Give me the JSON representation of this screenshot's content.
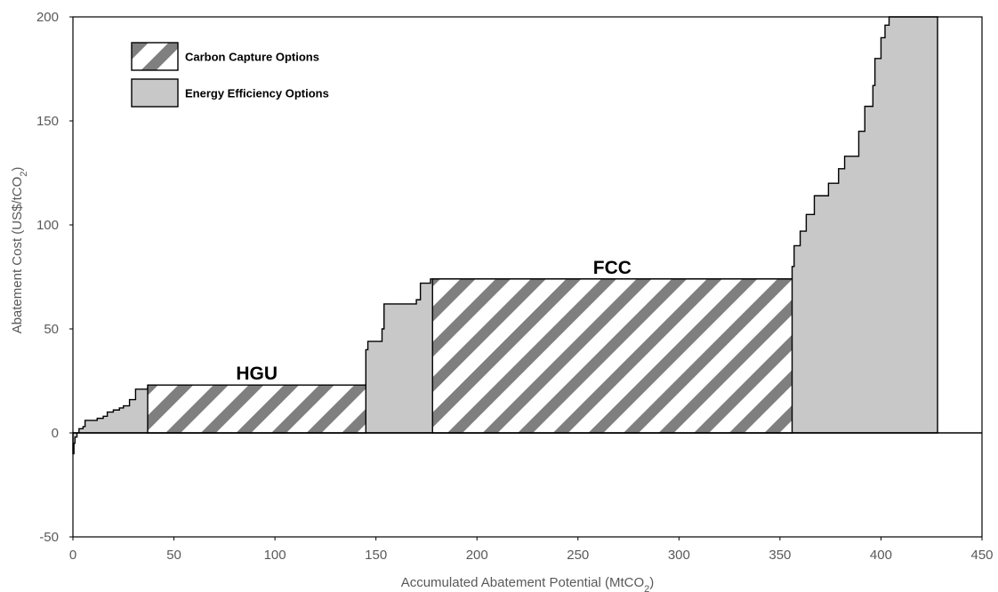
{
  "chart_data": {
    "type": "area",
    "xlabel": "Accumulated Abatement Potential (MtCO2)",
    "ylabel": "Abatement Cost (US$/tCO2)",
    "xlim": [
      0,
      450
    ],
    "ylim": [
      -50,
      200
    ],
    "xticks": [
      "0",
      "50",
      "100",
      "150",
      "200",
      "250",
      "300",
      "350",
      "400",
      "450"
    ],
    "yticks": [
      "-50",
      "0",
      "50",
      "100",
      "150",
      "200"
    ],
    "grid": false,
    "legend_position": "top-left",
    "legend": [
      {
        "label": "Carbon Capture Options",
        "pattern": "hatched"
      },
      {
        "label": "Energy Efficiency Options",
        "pattern": "solid"
      }
    ],
    "colors": {
      "energy_fill": "#c8c8c8",
      "hatch": "#7f7f7f",
      "outline": "#000000",
      "axis_text": "#595959"
    },
    "series": [
      {
        "name": "Energy Efficiency Options",
        "pattern": "solid",
        "steps": [
          [
            0,
            -10
          ],
          [
            0.5,
            -5
          ],
          [
            1,
            -2
          ],
          [
            2,
            0
          ],
          [
            3,
            2
          ],
          [
            5,
            3
          ],
          [
            6,
            6
          ],
          [
            12,
            7
          ],
          [
            15,
            8
          ],
          [
            17,
            10
          ],
          [
            20,
            11
          ],
          [
            23,
            12
          ],
          [
            25,
            13
          ],
          [
            28,
            16
          ],
          [
            31,
            21
          ],
          [
            37,
            22
          ],
          [
            145,
            40
          ],
          [
            146,
            44
          ],
          [
            153,
            50
          ],
          [
            154,
            62
          ],
          [
            170,
            64
          ],
          [
            172,
            72
          ],
          [
            177,
            74
          ],
          [
            356,
            80
          ],
          [
            357,
            90
          ],
          [
            360,
            97
          ],
          [
            363,
            105
          ],
          [
            367,
            114
          ],
          [
            374,
            120
          ],
          [
            379,
            127
          ],
          [
            382,
            133
          ],
          [
            389,
            145
          ],
          [
            392,
            157
          ],
          [
            396,
            167
          ],
          [
            397,
            180
          ],
          [
            400,
            190
          ],
          [
            402,
            196
          ],
          [
            404,
            200
          ],
          [
            428,
            200
          ]
        ]
      },
      {
        "name": "Carbon Capture Options",
        "pattern": "hatched",
        "blocks": [
          {
            "label": "HGU",
            "x0": 37,
            "x1": 145,
            "y": 23
          },
          {
            "label": "FCC",
            "x0": 178,
            "x1": 356,
            "y": 74
          }
        ]
      }
    ]
  }
}
